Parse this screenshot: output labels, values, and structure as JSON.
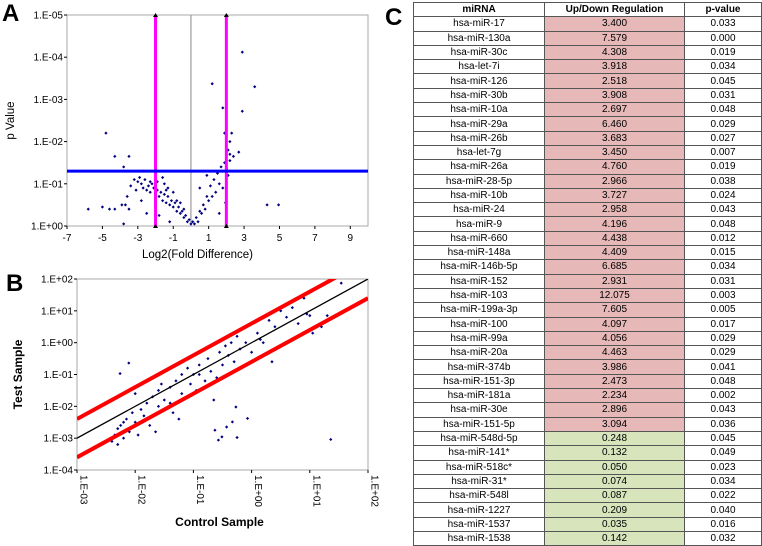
{
  "panels": {
    "a": "A",
    "b": "B",
    "c": "C"
  },
  "colors": {
    "points": "#000080",
    "magenta": "#ff00ff",
    "blue": "#0000ff",
    "red": "#ff0000",
    "up": "#e6b8b7",
    "down": "#d7e4bc"
  },
  "chart_data": [
    {
      "type": "scatter",
      "title": "",
      "xlabel": "Log2(Fold Difference)",
      "ylabel": "p Value",
      "xlim": [
        -7,
        10
      ],
      "ylim_neg_log10": [
        0,
        5
      ],
      "x_ticks": [
        -7,
        -5,
        -3,
        -1,
        1,
        3,
        5,
        7,
        9
      ],
      "x_tick_labels": [
        "-7",
        "-5",
        "-3",
        "-1",
        "1",
        "3",
        "5",
        "7",
        "9"
      ],
      "y_tick_labels": [
        "1.E+00",
        "1.E-01",
        "1.E-02",
        "1.E-03",
        "1.E-04",
        "1.E-05"
      ],
      "thresholds": {
        "fold_log2": [
          -2,
          2
        ],
        "p_value": 0.05
      },
      "points_log2fc_neglog10p": [
        [
          -3.2,
          1.1
        ],
        [
          -3,
          1.05
        ],
        [
          -2.8,
          1.0
        ],
        [
          -2.6,
          1.1
        ],
        [
          -2.4,
          0.95
        ],
        [
          -2.2,
          1.0
        ],
        [
          -2.1,
          0.9
        ],
        [
          -1.9,
          0.85
        ],
        [
          -1.7,
          0.8
        ],
        [
          -1.5,
          0.75
        ],
        [
          -1.3,
          0.7
        ],
        [
          -1.1,
          0.6
        ],
        [
          -0.9,
          0.55
        ],
        [
          -0.7,
          0.45
        ],
        [
          -0.5,
          0.35
        ],
        [
          -0.3,
          0.25
        ],
        [
          -0.1,
          0.15
        ],
        [
          0.1,
          0.1
        ],
        [
          0.3,
          0.2
        ],
        [
          0.5,
          0.35
        ],
        [
          0.7,
          0.5
        ],
        [
          0.9,
          0.7
        ],
        [
          1.1,
          0.95
        ],
        [
          1.3,
          1.1
        ],
        [
          1.5,
          1.25
        ],
        [
          1.7,
          1.4
        ],
        [
          1.9,
          1.5
        ],
        [
          2.1,
          1.8
        ],
        [
          2.2,
          2.0
        ],
        [
          2.3,
          2.2
        ],
        [
          2.1,
          1.2
        ],
        [
          1.8,
          0.9
        ],
        [
          1.4,
          0.8
        ],
        [
          1.0,
          0.6
        ],
        [
          0.6,
          0.3
        ],
        [
          0.4,
          0.1
        ],
        [
          0.2,
          0.05
        ],
        [
          -0.2,
          0.1
        ],
        [
          -0.4,
          0.2
        ],
        [
          -0.6,
          0.3
        ],
        [
          -0.8,
          0.35
        ],
        [
          -1.0,
          0.45
        ],
        [
          -1.2,
          0.5
        ],
        [
          -1.4,
          0.55
        ],
        [
          -1.6,
          0.6
        ],
        [
          -1.8,
          0.7
        ],
        [
          -2.0,
          0.75
        ],
        [
          -2.3,
          0.8
        ],
        [
          -2.5,
          0.85
        ],
        [
          -2.7,
          0.9
        ],
        [
          -3.4,
          0.95
        ],
        [
          -3.6,
          0.7
        ],
        [
          -3.7,
          0.5
        ],
        [
          -3.9,
          0.5
        ],
        [
          -3.5,
          0.4
        ],
        [
          -2.8,
          0.6
        ],
        [
          -2.5,
          0.3
        ],
        [
          -2.0,
          0.5
        ],
        [
          -1.5,
          1.0
        ],
        [
          -1.3,
          0.9
        ],
        [
          -1.0,
          0.8
        ],
        [
          -0.6,
          0.55
        ],
        [
          -2.7,
          1.3
        ],
        [
          -2.0,
          1.25
        ],
        [
          -1.6,
          1.15
        ],
        [
          -3.8,
          1.4
        ],
        [
          -4.8,
          2.2
        ],
        [
          -4.3,
          1.65
        ],
        [
          -3.5,
          1.65
        ],
        [
          -5.8,
          0.4
        ],
        [
          -5.0,
          0.45
        ],
        [
          -4.6,
          0.4
        ],
        [
          -4.3,
          0.4
        ],
        [
          -3.8,
          0.05
        ],
        [
          -1.8,
          0.25
        ],
        [
          -1.2,
          0.1
        ],
        [
          1.2,
          3.37
        ],
        [
          2.9,
          4.12
        ],
        [
          3.6,
          3.3
        ],
        [
          2.9,
          2.72
        ],
        [
          1.9,
          2.2
        ],
        [
          1.8,
          2.8
        ],
        [
          2.7,
          1.75
        ],
        [
          2.4,
          1.65
        ],
        [
          4.3,
          0.5
        ],
        [
          4.95,
          0.5
        ],
        [
          1.95,
          0.55
        ],
        [
          1.6,
          0.3
        ],
        [
          0.9,
          1.2
        ],
        [
          0.5,
          0.9
        ],
        [
          2.2,
          1.55
        ],
        [
          -3.1,
          0.85
        ],
        [
          -2.9,
          1.15
        ],
        [
          -2.3,
          1.05
        ],
        [
          -1.9,
          1.05
        ],
        [
          -1.4,
          0.85
        ],
        [
          -0.8,
          0.6
        ],
        [
          -0.4,
          0.4
        ],
        [
          0.0,
          0.05
        ],
        [
          0.8,
          0.4
        ],
        [
          1.2,
          0.7
        ],
        [
          1.6,
          1.0
        ],
        [
          2.0,
          1.35
        ],
        [
          2.2,
          1.7
        ]
      ]
    },
    {
      "type": "scatter",
      "title": "",
      "xlabel": "Control Sample",
      "ylabel": "Test Sample",
      "xscale": "log",
      "yscale": "log",
      "xlim": [
        0.001,
        100
      ],
      "ylim": [
        0.0001,
        100
      ],
      "x_tick_labels": [
        "1.E-03",
        "1.E-02",
        "1.E-01",
        "1.E+00",
        "1.E+01",
        "1.E+02"
      ],
      "y_tick_labels": [
        "1.E-04",
        "1.E-03",
        "1.E-02",
        "1.E-01",
        "1.E+00",
        "1.E+01",
        "1.E+02"
      ],
      "reference_lines": {
        "identity": 1,
        "upper_fold": 4,
        "lower_fold": 0.25
      },
      "points_log10": [
        [
          -2.4,
          -3.1
        ],
        [
          -2.35,
          -2.9
        ],
        [
          -2.3,
          -3.2
        ],
        [
          -2.25,
          -2.6
        ],
        [
          -2.2,
          -3.0
        ],
        [
          -2.15,
          -2.4
        ],
        [
          -2.1,
          -2.8
        ],
        [
          -2.05,
          -2.2
        ],
        [
          -2.0,
          -2.5
        ],
        [
          -1.95,
          -2.9
        ],
        [
          -1.9,
          -2.1
        ],
        [
          -1.85,
          -2.3
        ],
        [
          -1.8,
          -1.9
        ],
        [
          -1.75,
          -2.6
        ],
        [
          -1.7,
          -1.7
        ],
        [
          -1.6,
          -2.0
        ],
        [
          -1.55,
          -1.3
        ],
        [
          -1.5,
          -1.8
        ],
        [
          -1.4,
          -1.4
        ],
        [
          -1.35,
          -2.2
        ],
        [
          -1.3,
          -1.2
        ],
        [
          -1.2,
          -1.6
        ],
        [
          -1.1,
          -0.8
        ],
        [
          -1.05,
          -1.3
        ],
        [
          -1.0,
          -1.0
        ],
        [
          -0.95,
          -1.5
        ],
        [
          -0.9,
          -0.7
        ],
        [
          -0.8,
          -1.2
        ],
        [
          -0.75,
          -0.5
        ],
        [
          -0.7,
          -0.9
        ],
        [
          -0.6,
          -1.1
        ],
        [
          -0.55,
          -0.3
        ],
        [
          -0.5,
          -0.7
        ],
        [
          -0.4,
          -0.4
        ],
        [
          -0.35,
          0.0
        ],
        [
          -0.3,
          -0.6
        ],
        [
          -0.25,
          0.2
        ],
        [
          -0.2,
          -0.2
        ],
        [
          -0.1,
          0.0
        ],
        [
          0.0,
          -0.3
        ],
        [
          0.1,
          0.3
        ],
        [
          0.2,
          0.0
        ],
        [
          0.3,
          0.7
        ],
        [
          0.35,
          -0.6
        ],
        [
          0.4,
          0.5
        ],
        [
          0.5,
          1.0
        ],
        [
          0.6,
          0.8
        ],
        [
          0.7,
          1.1
        ],
        [
          0.8,
          0.6
        ],
        [
          0.9,
          1.4
        ],
        [
          1.0,
          0.85
        ],
        [
          1.05,
          0.3
        ],
        [
          1.2,
          0.5
        ],
        [
          1.3,
          0.85
        ],
        [
          0.95,
          0.9
        ],
        [
          -1.65,
          -2.8
        ],
        [
          -1.25,
          -2.4
        ],
        [
          -0.65,
          -1.8
        ],
        [
          -2.11,
          -0.64
        ],
        [
          -2.26,
          -0.97
        ],
        [
          1.36,
          -3.04
        ],
        [
          1.54,
          1.87
        ],
        [
          -0.63,
          -2.75
        ],
        [
          -0.57,
          -3.06
        ],
        [
          -0.43,
          -2.65
        ],
        [
          -0.25,
          -2.98
        ],
        [
          -0.27,
          -2.02
        ],
        [
          -0.07,
          -2.38
        ],
        [
          -0.33,
          -2.49
        ],
        [
          -0.51,
          -2.96
        ],
        [
          -2.3,
          -2.7
        ],
        [
          -2.2,
          -2.5
        ],
        [
          -2.0,
          -1.6
        ],
        [
          -1.8,
          -2.4
        ],
        [
          -1.6,
          -1.5
        ],
        [
          -1.4,
          -1.9
        ],
        [
          -1.2,
          -1.0
        ],
        [
          -0.9,
          -1.0
        ],
        [
          -0.45,
          -0.1
        ],
        [
          0.15,
          0.1
        ]
      ]
    }
  ],
  "table": {
    "headers": [
      "miRNA",
      "Up/Down Regulation",
      "p-value"
    ],
    "rows": [
      [
        "hsa-miR-17",
        "3.400",
        "0.033",
        "up"
      ],
      [
        "hsa-miR-130a",
        "7.579",
        "0.000",
        "up"
      ],
      [
        "hsa-miR-30c",
        "4.308",
        "0.019",
        "up"
      ],
      [
        "hsa-let-7i",
        "3.918",
        "0.034",
        "up"
      ],
      [
        "hsa-miR-126",
        "2.518",
        "0.045",
        "up"
      ],
      [
        "hsa-miR-30b",
        "3.908",
        "0.031",
        "up"
      ],
      [
        "hsa-miR-10a",
        "2.697",
        "0.048",
        "up"
      ],
      [
        "hsa-miR-29a",
        "6.460",
        "0.029",
        "up"
      ],
      [
        "hsa-miR-26b",
        "3.683",
        "0.027",
        "up"
      ],
      [
        "hsa-let-7g",
        "3.450",
        "0.007",
        "up"
      ],
      [
        "hsa-miR-26a",
        "4.760",
        "0.019",
        "up"
      ],
      [
        "hsa-miR-28-5p",
        "2.966",
        "0.038",
        "up"
      ],
      [
        "hsa-miR-10b",
        "3.727",
        "0.024",
        "up"
      ],
      [
        "hsa-miR-24",
        "2.958",
        "0.043",
        "up"
      ],
      [
        "hsa-miR-9",
        "4.196",
        "0.048",
        "up"
      ],
      [
        "hsa-miR-660",
        "4.438",
        "0.012",
        "up"
      ],
      [
        "hsa-miR-148a",
        "4.409",
        "0.015",
        "up"
      ],
      [
        "hsa-miR-146b-5p",
        "6.685",
        "0.034",
        "up"
      ],
      [
        "hsa-miR-152",
        "2.931",
        "0.031",
        "up"
      ],
      [
        "hsa-miR-103",
        "12.075",
        "0.003",
        "up"
      ],
      [
        "hsa-miR-199a-3p",
        "7.605",
        "0.005",
        "up"
      ],
      [
        "hsa-miR-100",
        "4.097",
        "0.017",
        "up"
      ],
      [
        "hsa-miR-99a",
        "4.056",
        "0.029",
        "up"
      ],
      [
        "hsa-miR-20a",
        "4.463",
        "0.029",
        "up"
      ],
      [
        "hsa-miR-374b",
        "3.986",
        "0.041",
        "up"
      ],
      [
        "hsa-miR-151-3p",
        "2.473",
        "0.048",
        "up"
      ],
      [
        "hsa-miR-181a",
        "2.234",
        "0.002",
        "up"
      ],
      [
        "hsa-miR-30e",
        "2.896",
        "0.043",
        "up"
      ],
      [
        "hsa-miR-151-5p",
        "3.094",
        "0.036",
        "up"
      ],
      [
        "hsa-miR-548d-5p",
        "0.248",
        "0.045",
        "down"
      ],
      [
        "hsa-miR-141*",
        "0.132",
        "0.049",
        "down"
      ],
      [
        "hsa-miR-518c*",
        "0.050",
        "0.023",
        "down"
      ],
      [
        "hsa-miR-31*",
        "0.074",
        "0.034",
        "down"
      ],
      [
        "hsa-miR-548l",
        "0.087",
        "0.022",
        "down"
      ],
      [
        "hsa-miR-1227",
        "0.209",
        "0.040",
        "down"
      ],
      [
        "hsa-miR-1537",
        "0.035",
        "0.016",
        "down"
      ],
      [
        "hsa-miR-1538",
        "0.142",
        "0.032",
        "down"
      ]
    ]
  }
}
